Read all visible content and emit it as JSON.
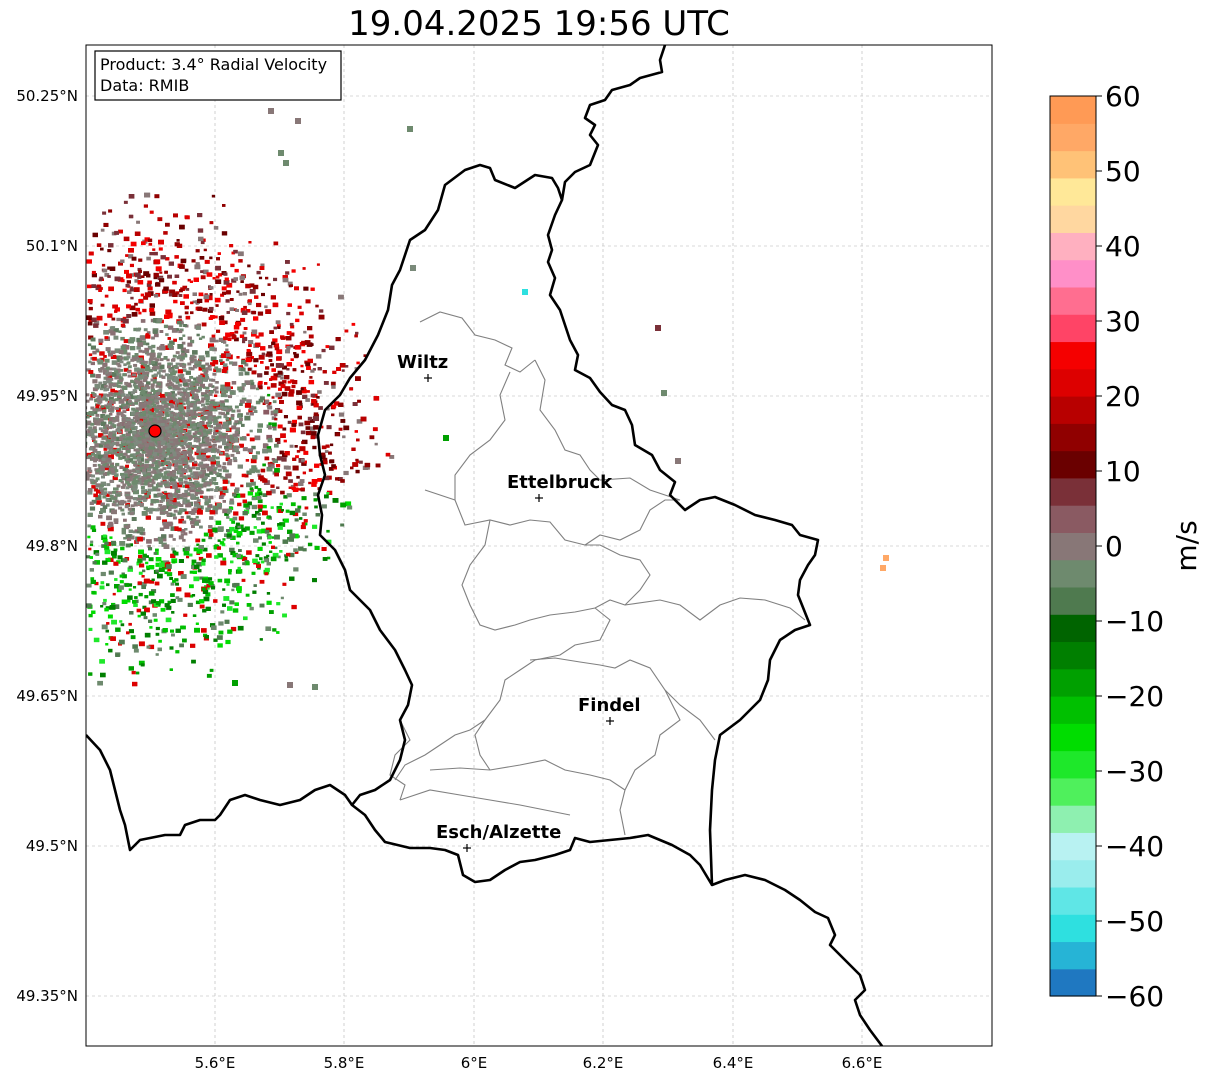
{
  "title": "19.04.2025 19:56 UTC",
  "info_box": {
    "product": "Product: 3.4° Radial Velocity",
    "data": "Data: RMIB"
  },
  "axes": {
    "lat_ticks": [
      "50.25°N",
      "50.1°N",
      "49.95°N",
      "49.8°N",
      "49.65°N",
      "49.5°N",
      "49.35°N"
    ],
    "lon_ticks": [
      "5.6°E",
      "5.8°E",
      "6°E",
      "6.2°E",
      "6.4°E",
      "6.6°E"
    ]
  },
  "cities": [
    {
      "name": "Wiltz"
    },
    {
      "name": "Ettelbruck"
    },
    {
      "name": "Findel"
    },
    {
      "name": "Esch/Alzette"
    }
  ],
  "colorbar": {
    "label": "m/s",
    "ticks": [
      "60",
      "50",
      "40",
      "30",
      "20",
      "10",
      "0",
      "−10",
      "−20",
      "−30",
      "−40",
      "−50",
      "−60"
    ],
    "range": [
      -60,
      60
    ],
    "colors": [
      "#1f78c1",
      "#26b4d6",
      "#2ee0e0",
      "#5fe6e6",
      "#9aeded",
      "#b8f2f2",
      "#8ef0b0",
      "#4ff05c",
      "#1ee82a",
      "#00dd00",
      "#00c000",
      "#00a000",
      "#007f00",
      "#006400",
      "#4f7a4f",
      "#6e8a6e",
      "#887777",
      "#8a5a62",
      "#7a3038",
      "#6a0000",
      "#900000",
      "#b80000",
      "#dd0000",
      "#f50000",
      "#ff4466",
      "#ff6e90",
      "#ff8fc8",
      "#ffb0c0",
      "#ffd7a0",
      "#ffe898",
      "#ffc277",
      "#ffa866",
      "#ff9a55"
    ]
  },
  "colors": {
    "border": "#000000",
    "canton": "#808080",
    "grid": "#b5b5b5",
    "radar_site": "#ff0000"
  }
}
